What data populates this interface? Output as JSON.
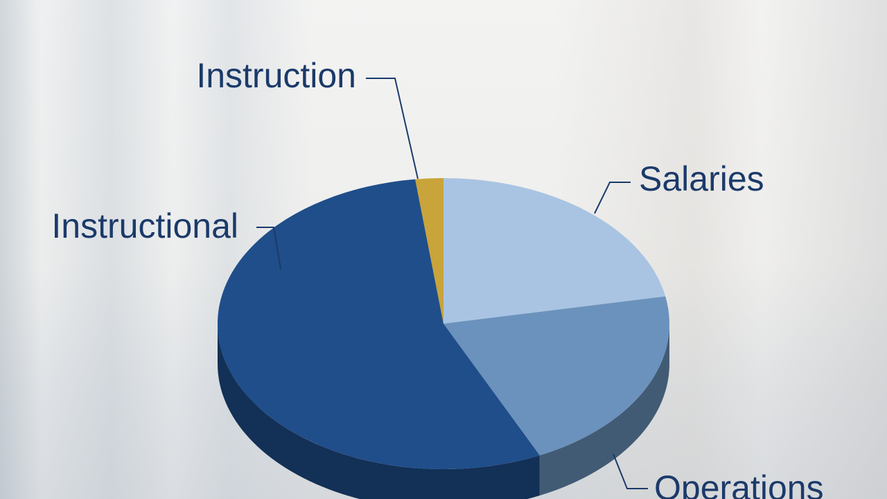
{
  "chart_data": {
    "type": "pie3d",
    "categories": [
      "Salaries",
      "Operations",
      "Instructional",
      "Instruction"
    ],
    "values": [
      22,
      21,
      55,
      2
    ],
    "colors": [
      "#a9c4e2",
      "#6b92bd",
      "#1f4e8a",
      "#c9a43a"
    ]
  }
}
